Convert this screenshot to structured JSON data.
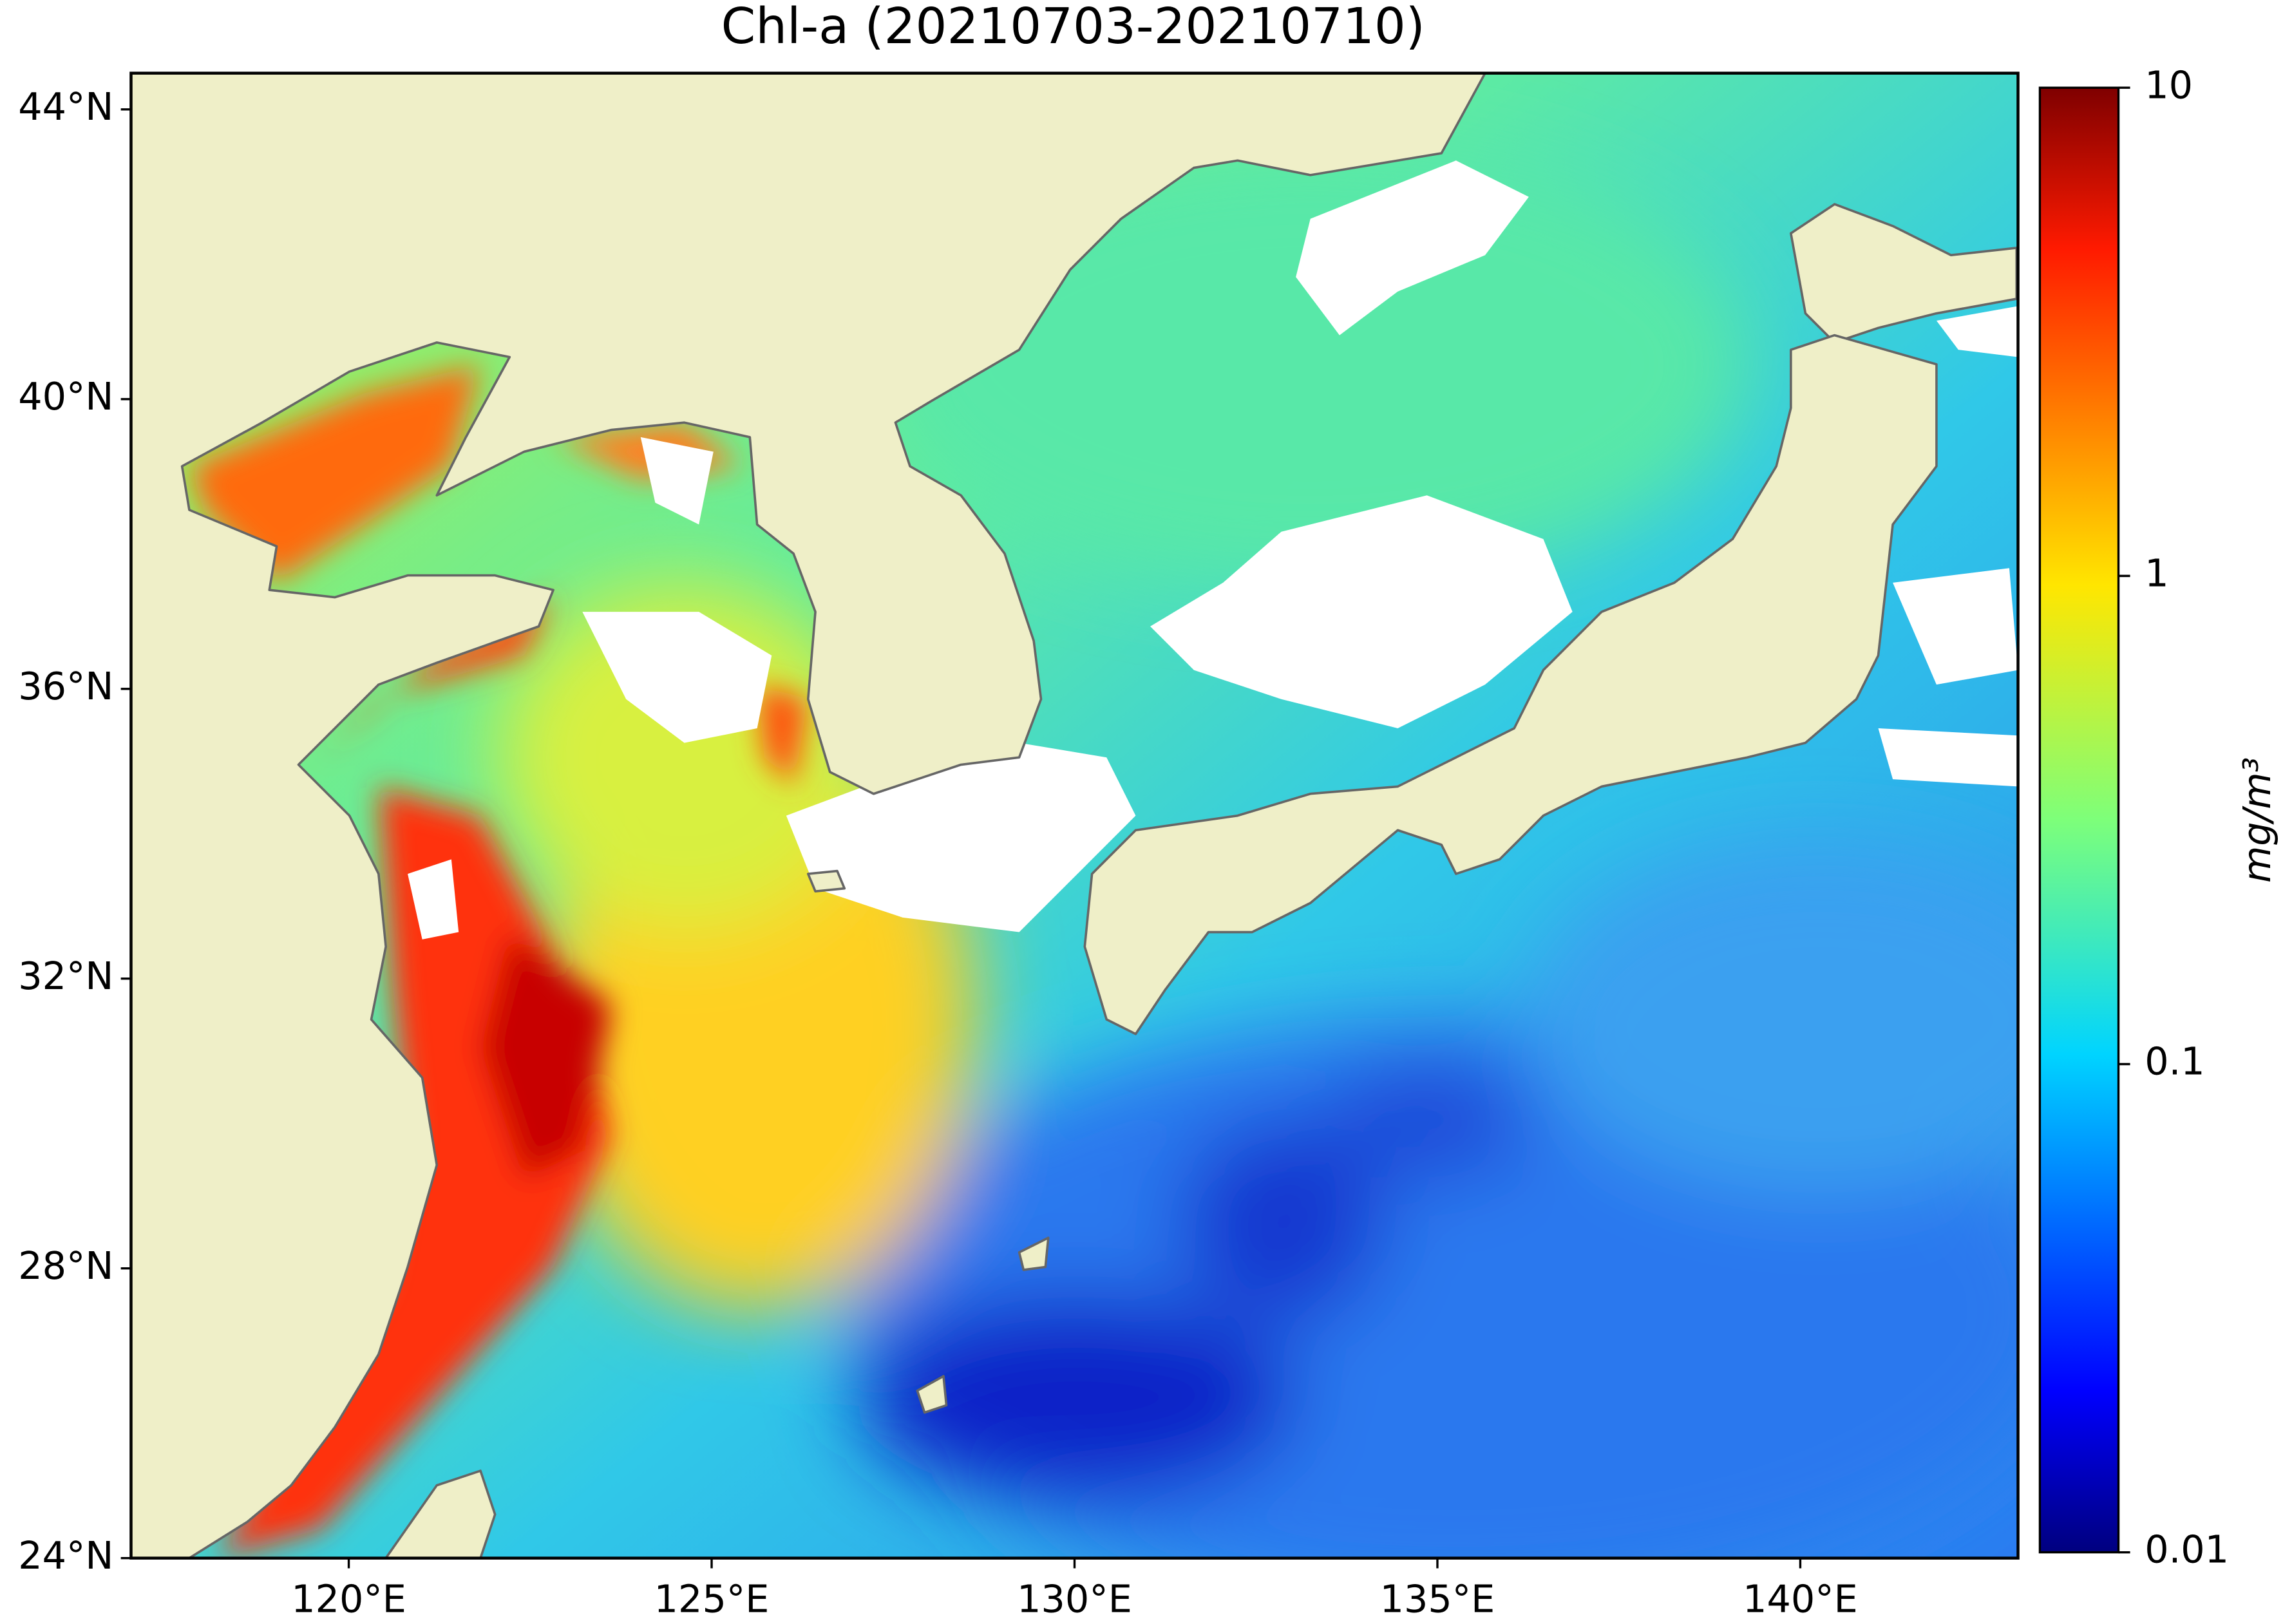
{
  "chart_data": {
    "type": "map",
    "title": "Chl-a (20210703-20210710)",
    "xlim": [
      117,
      143
    ],
    "ylim": [
      24,
      44.5
    ],
    "xticks": [
      {
        "value": 120,
        "label": "120°E"
      },
      {
        "value": 125,
        "label": "125°E"
      },
      {
        "value": 130,
        "label": "130°E"
      },
      {
        "value": 135,
        "label": "135°E"
      },
      {
        "value": 140,
        "label": "140°E"
      }
    ],
    "yticks": [
      {
        "value": 24,
        "label": "24°N"
      },
      {
        "value": 28,
        "label": "28°N"
      },
      {
        "value": 32,
        "label": "32°N"
      },
      {
        "value": 36,
        "label": "36°N"
      },
      {
        "value": 40,
        "label": "40°N"
      },
      {
        "value": 44,
        "label": "44°N"
      }
    ],
    "colorbar": {
      "label": "mg/m³",
      "lim": [
        0.01,
        10
      ],
      "ticks": [
        0.01,
        0.1,
        1,
        10
      ],
      "log_scale": true
    }
  }
}
